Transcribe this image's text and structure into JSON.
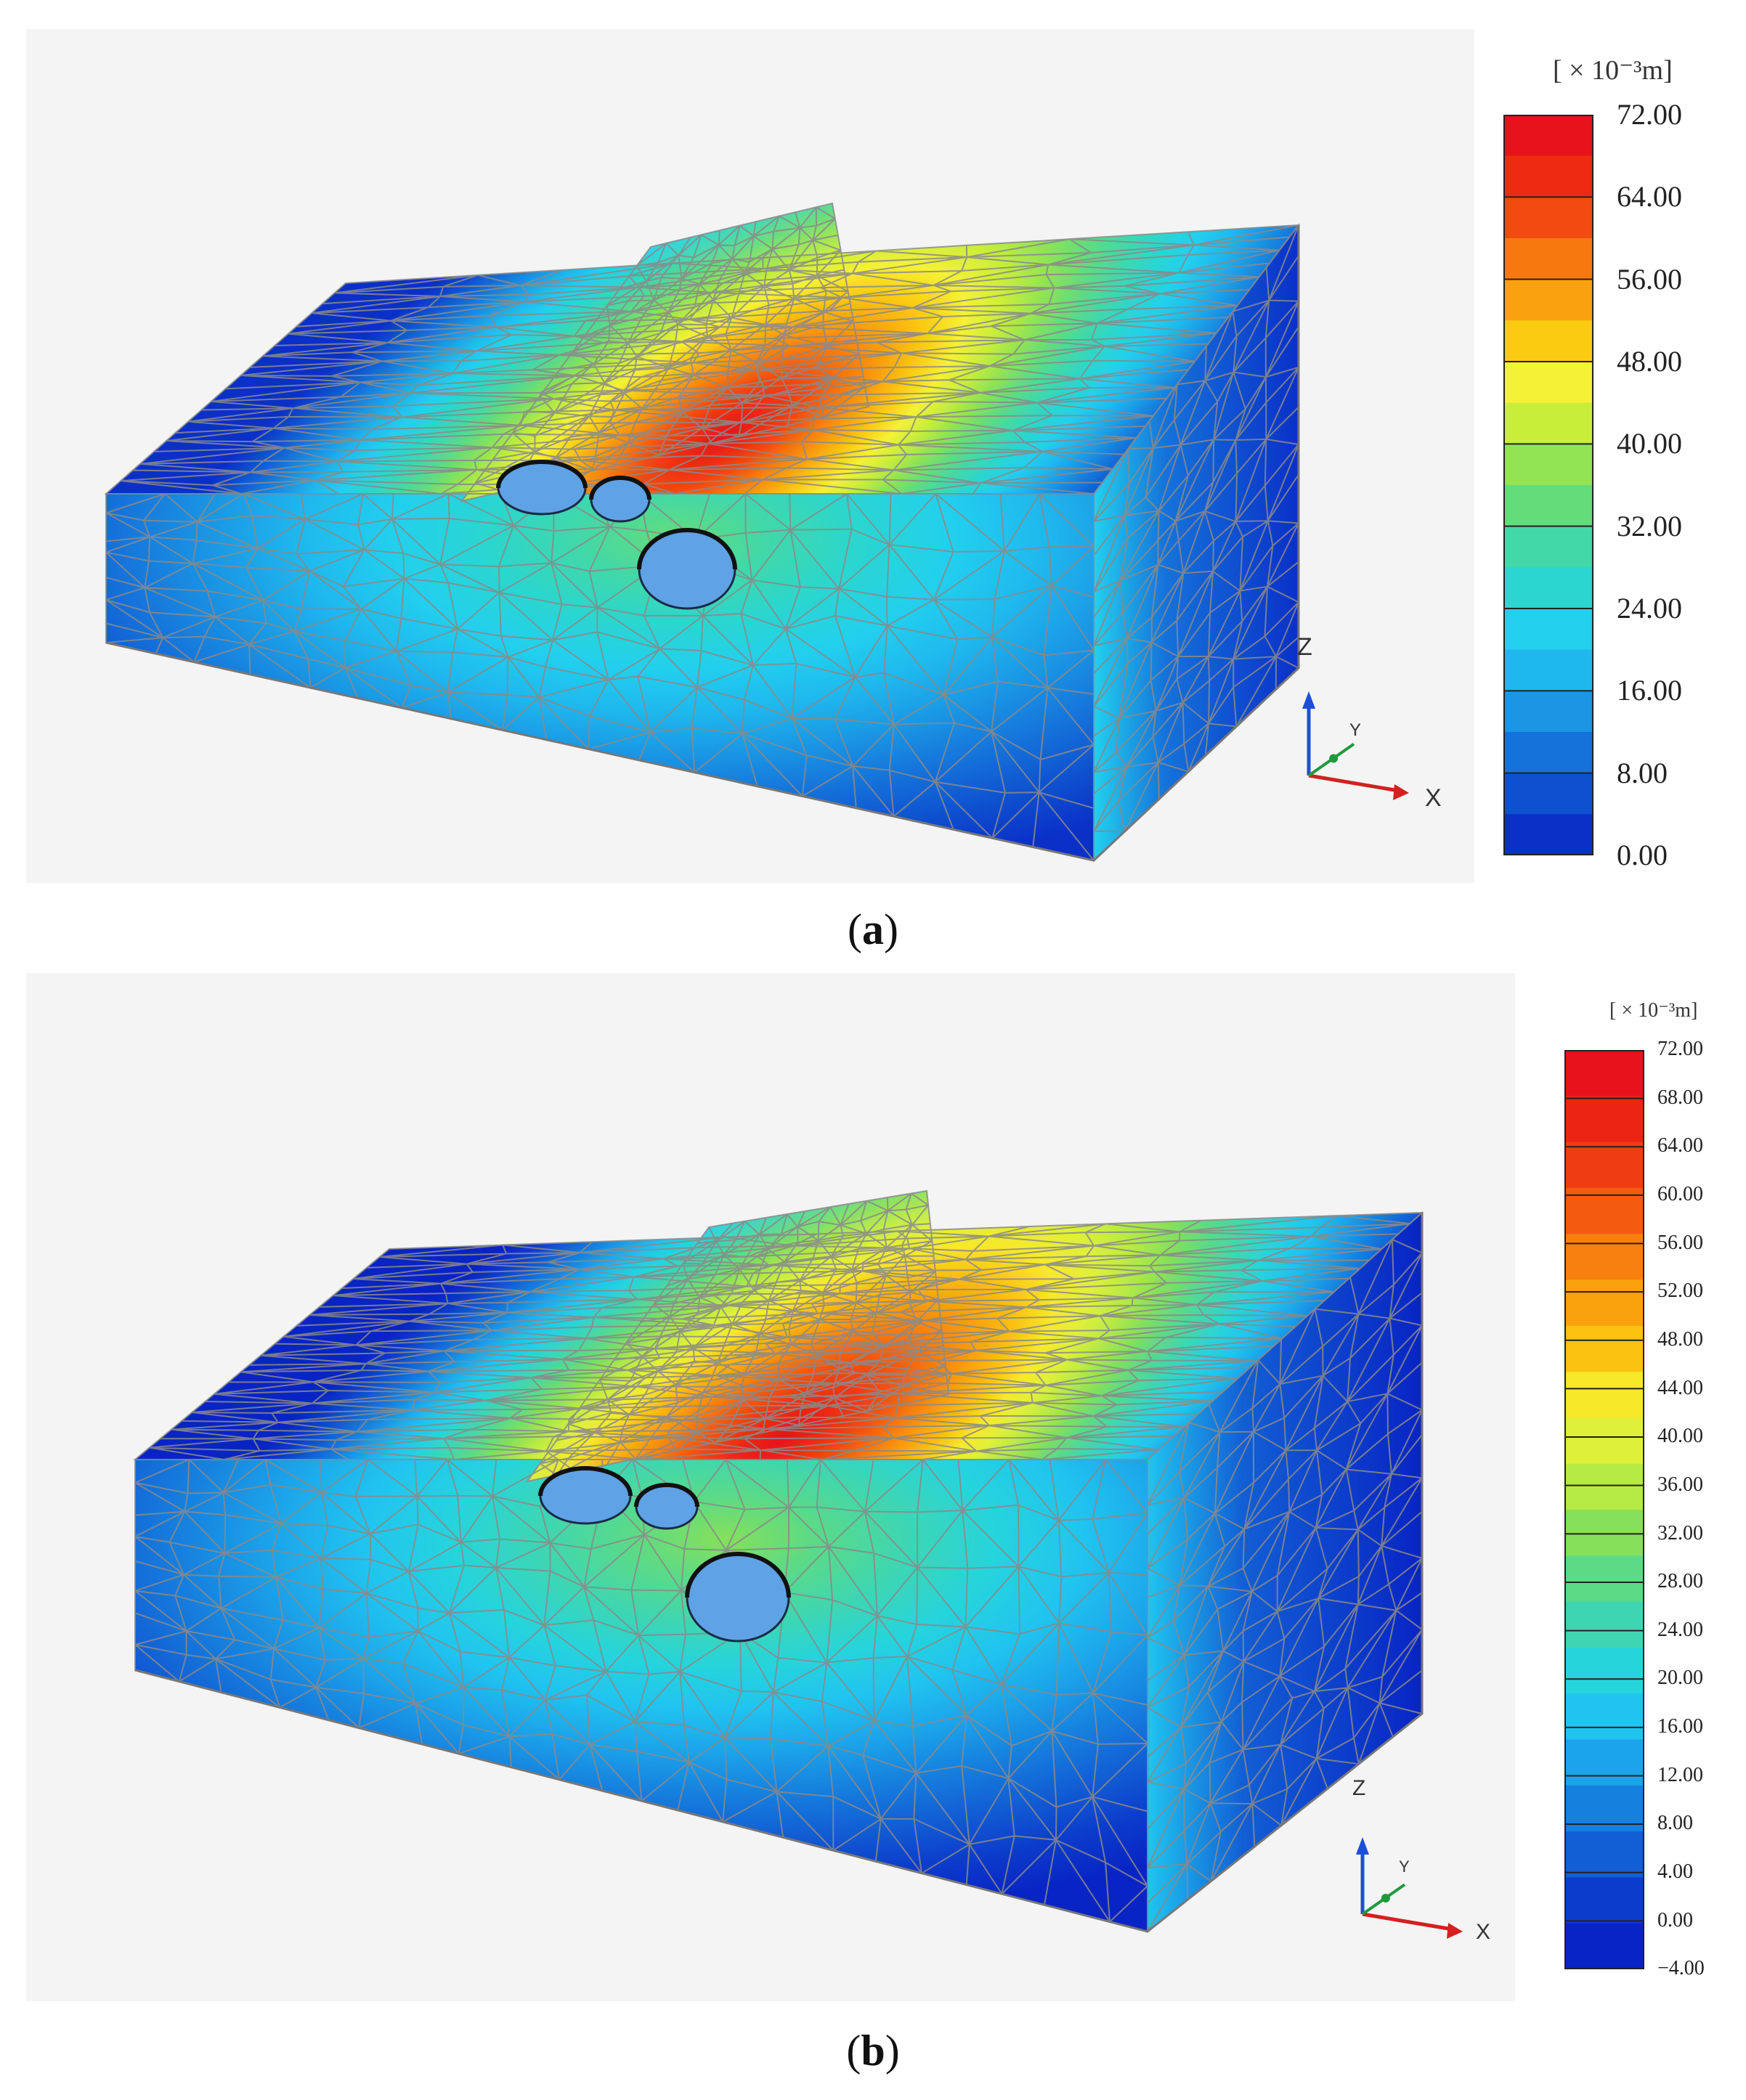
{
  "panels": [
    {
      "id": "a",
      "caption_open": "(",
      "caption_letter": "a",
      "caption_close": ")",
      "unit": "[ × 10⁻³m]",
      "legend_labels": [
        "72.00",
        "64.00",
        "56.00",
        "48.00",
        "40.00",
        "32.00",
        "24.00",
        "16.00",
        "8.00",
        "0.00"
      ],
      "legend_colors": [
        "#e8121a",
        "#ee2a12",
        "#f24a10",
        "#f6780e",
        "#f9a10e",
        "#fbcb12",
        "#f5f135",
        "#c9ee3a",
        "#92e452",
        "#64dc7a",
        "#42d8a8",
        "#2ad6cf",
        "#22d0ee",
        "#1fb8ee",
        "#1a96e4",
        "#1572da",
        "#0e50cf",
        "#0a30c8"
      ],
      "axes": {
        "z": "Z",
        "y": "Y",
        "x": "X"
      }
    },
    {
      "id": "b",
      "caption_open": "(",
      "caption_letter": "b",
      "caption_close": ")",
      "unit": "[ × 10⁻³m]",
      "legend_labels": [
        "72.00",
        "68.00",
        "64.00",
        "60.00",
        "56.00",
        "52.00",
        "48.00",
        "44.00",
        "40.00",
        "36.00",
        "32.00",
        "28.00",
        "24.00",
        "20.00",
        "16.00",
        "12.00",
        "8.00",
        "4.00",
        "0.00",
        "−4.00"
      ],
      "legend_colors": [
        "#e8121a",
        "#ec2414",
        "#f03c12",
        "#f45a10",
        "#f7800e",
        "#f9a20e",
        "#fbc212",
        "#f8e82a",
        "#dff03a",
        "#b6ea44",
        "#86e05a",
        "#5cda86",
        "#3ed6b2",
        "#26d4dc",
        "#20c4f0",
        "#1ca4ea",
        "#1680de",
        "#125ed4",
        "#0c3ccb",
        "#0824c4"
      ],
      "axes": {
        "z": "Z",
        "y": "Y",
        "x": "X"
      }
    }
  ]
}
